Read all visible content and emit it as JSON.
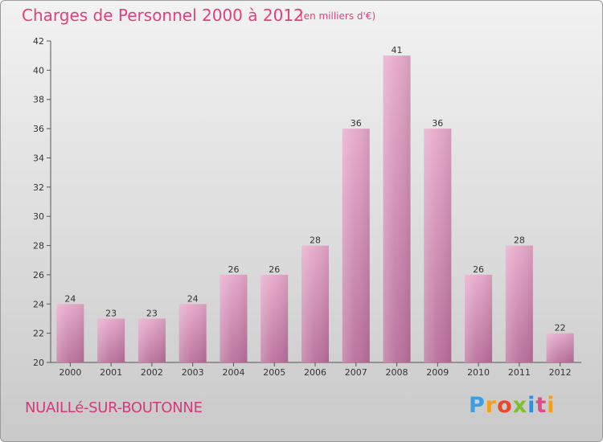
{
  "chart_data": {
    "type": "bar",
    "title": "Charges de Personnel 2000 à 2012",
    "subtitle": "(en milliers d'€)",
    "categories": [
      "2000",
      "2001",
      "2002",
      "2003",
      "2004",
      "2005",
      "2006",
      "2007",
      "2008",
      "2009",
      "2010",
      "2011",
      "2012"
    ],
    "values": [
      24,
      23,
      23,
      24,
      26,
      26,
      28,
      36,
      41,
      36,
      26,
      28,
      22
    ],
    "ylim": [
      20,
      42
    ],
    "yticks": [
      20,
      22,
      24,
      26,
      28,
      30,
      32,
      34,
      36,
      38,
      40,
      42
    ],
    "grid": false,
    "bar_color": "#d98bb6"
  },
  "footer": {
    "town": "NUAILLé-SUR-BOUTONNE"
  }
}
